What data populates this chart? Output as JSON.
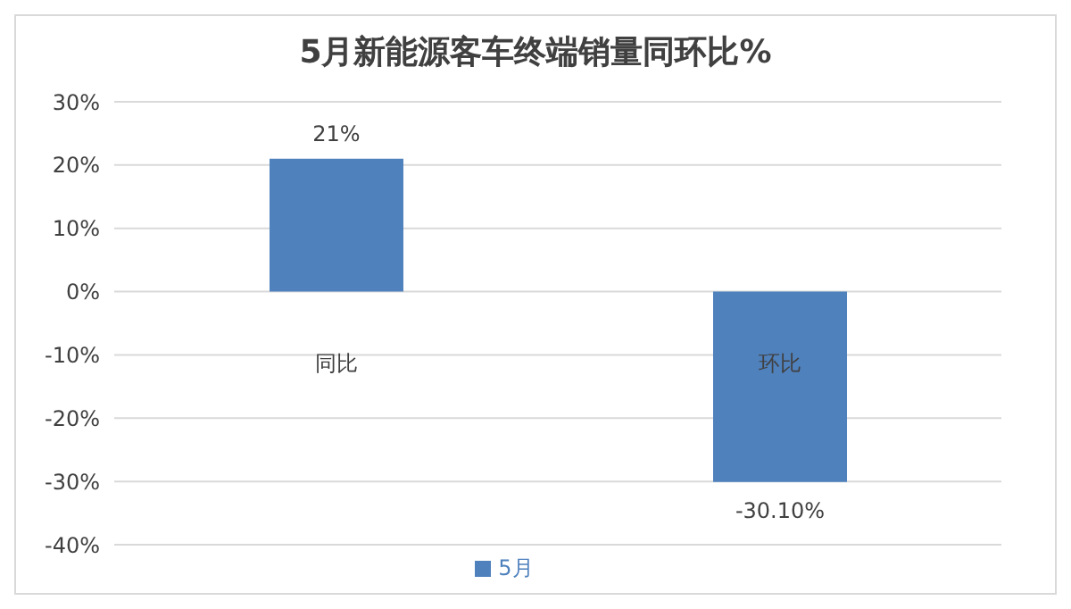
{
  "chart_data": {
    "type": "bar",
    "title": "5月新能源客车终端销量同环比%",
    "categories": [
      "同比",
      "环比"
    ],
    "series": [
      {
        "name": "5月",
        "color": "#4f81bd",
        "values": [
          21,
          -30.1
        ],
        "value_labels": [
          "21%",
          "-30.10%"
        ]
      }
    ],
    "ylim": [
      -40,
      30
    ],
    "yticks": [
      {
        "value": -40,
        "label": "-40%"
      },
      {
        "value": -30,
        "label": "-30%"
      },
      {
        "value": -20,
        "label": "-20%"
      },
      {
        "value": -10,
        "label": "-10%"
      },
      {
        "value": 0,
        "label": "0%"
      },
      {
        "value": 10,
        "label": "10%"
      },
      {
        "value": 20,
        "label": "20%"
      },
      {
        "value": 30,
        "label": "30%"
      }
    ],
    "grid": "y",
    "legend": "bottom"
  }
}
